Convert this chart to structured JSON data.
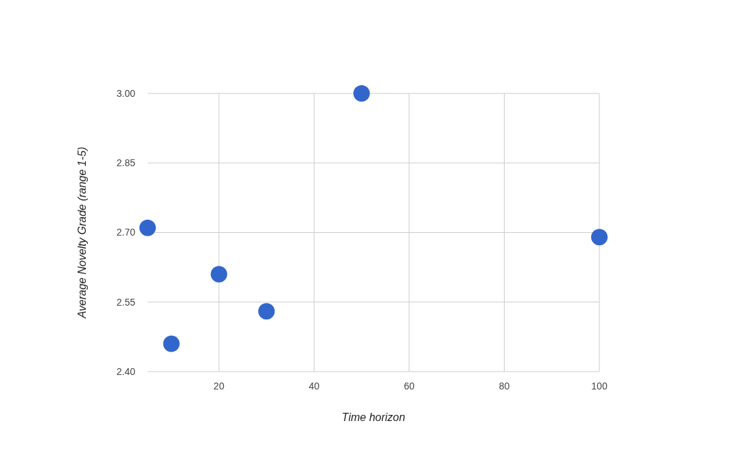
{
  "chart_data": {
    "type": "scatter",
    "xlabel": "Time horizon",
    "ylabel": "Average Novelty Grade (range 1-5)",
    "x": [
      5,
      10,
      20,
      30,
      50,
      100
    ],
    "series": [
      {
        "color": "#3366cc",
        "values": [
          2.71,
          2.46,
          2.61,
          2.53,
          3.0,
          2.69
        ]
      }
    ],
    "xlim": [
      5,
      100
    ],
    "xticks": [
      20,
      40,
      60,
      80,
      100
    ],
    "ylim": [
      2.4,
      3.0
    ],
    "yticks": [
      {
        "value": 2.4,
        "label": "2.40"
      },
      {
        "value": 2.55,
        "label": "2.55"
      },
      {
        "value": 2.7,
        "label": "2.70"
      },
      {
        "value": 2.85,
        "label": "2.85"
      },
      {
        "value": 3.0,
        "label": "3.00"
      }
    ],
    "grid": true,
    "marker": "circle"
  }
}
